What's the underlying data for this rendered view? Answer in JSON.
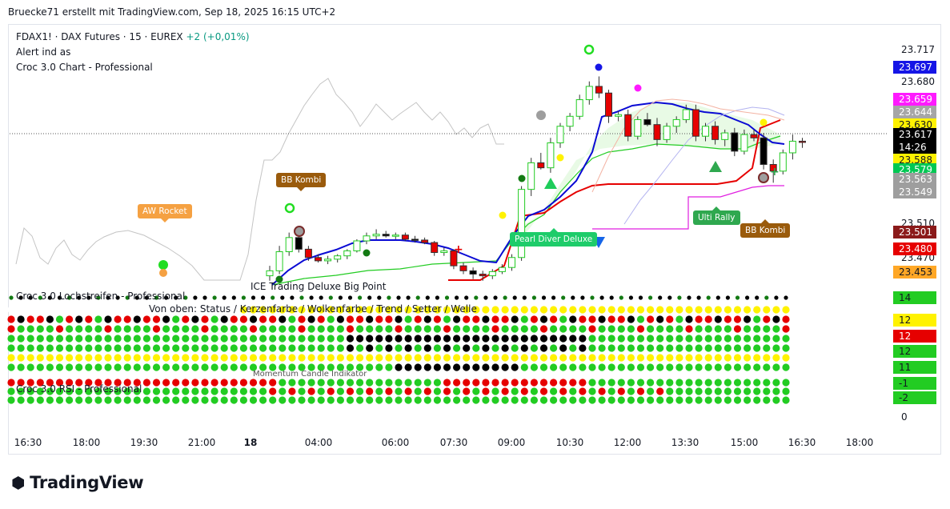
{
  "header": "Bruecke71 erstellt mit TradingView.com, Sep 18, 2025 16:15 UTC+2",
  "legend": {
    "symbol": "FDAX1! · DAX Futures · 15 · EUREX",
    "change": "+2 (+0,01%)",
    "line2": "Alert ind as",
    "line3": "Croc 3.0 Chart - Professional"
  },
  "panes": {
    "lochstreifen_title": "Croc 3.0 Lochstreifen - Professional",
    "lochstreifen_sub": "Von oben: Status / Kerzenfarbe / Wolkenfarbe / Trend / Setter / Welle",
    "ice_label": "ICE Trading Deluxe Big Point",
    "rsi_title": "Croc 3.0 RSI - Professional",
    "momentum_label": "Momentum Candle Indikator"
  },
  "signals": {
    "aw_rocket": "AW Rocket",
    "bb_kombi_1": "BB Kombi",
    "pearl_diver": "Pearl Diver Deluxe",
    "ulti_rally": "Ulti Rally",
    "bb_kombi_2": "BB Kombi"
  },
  "price_axis": {
    "labels": [
      "23.717",
      "23.680",
      "23.510",
      "23.470",
      "0"
    ],
    "badges": [
      {
        "text": "23.697",
        "color": "#1515e6",
        "fg": "#ffffff"
      },
      {
        "text": "23.659",
        "color": "#ff1aff",
        "fg": "#ffffff"
      },
      {
        "text": "23.644",
        "color": "#a6a6a6",
        "fg": "#ffffff"
      },
      {
        "text": "23.630",
        "color": "#fff200",
        "fg": "#131722"
      },
      {
        "text": "23.617",
        "color": "#000000",
        "fg": "#ffffff"
      },
      {
        "text": "14:26",
        "color": "#000000",
        "fg": "#ffffff"
      },
      {
        "text": "23.588",
        "color": "#fff200",
        "fg": "#131722"
      },
      {
        "text": "23.579",
        "color": "#00c853",
        "fg": "#ffffff"
      },
      {
        "text": "23.563",
        "color": "#9e9e9e",
        "fg": "#ffffff"
      },
      {
        "text": "23.549",
        "color": "#9e9e9e",
        "fg": "#ffffff"
      },
      {
        "text": "23.501",
        "color": "#8b1a1a",
        "fg": "#ffffff"
      },
      {
        "text": "23.480",
        "color": "#e60000",
        "fg": "#ffffff"
      },
      {
        "text": "23.453",
        "color": "#ffa726",
        "fg": "#131722"
      },
      {
        "text": "14",
        "color": "#22cc22",
        "fg": "#131722"
      },
      {
        "text": "12",
        "color": "#fff200",
        "fg": "#131722"
      },
      {
        "text": "12",
        "color": "#e60000",
        "fg": "#ffffff"
      },
      {
        "text": "12",
        "color": "#22cc22",
        "fg": "#131722"
      },
      {
        "text": "11",
        "color": "#22cc22",
        "fg": "#131722"
      },
      {
        "text": "-1",
        "color": "#22cc22",
        "fg": "#131722"
      },
      {
        "text": "-2",
        "color": "#22cc22",
        "fg": "#131722"
      }
    ]
  },
  "time_axis": [
    "16:30",
    "18:00",
    "19:30",
    "21:00",
    "18",
    "04:00",
    "06:00",
    "07:30",
    "09:00",
    "10:30",
    "12:00",
    "13:30",
    "15:00",
    "16:30",
    "18:00"
  ],
  "colors": {
    "up": "#22cc22",
    "down": "#e60000",
    "ma_blue": "#0a0ad4",
    "ma_red": "#e60000",
    "ma_green": "#22cc22",
    "ma_magenta": "#e01ee0",
    "grid": "#f0f3fa"
  },
  "chart_data": {
    "type": "candlestick",
    "symbol": "FDAX1!",
    "interval": "15",
    "y_range": [
      23445,
      23735
    ],
    "last_price": 23617,
    "candles": [
      {
        "t": "02:30",
        "o": 23456,
        "h": 23468,
        "l": 23450,
        "c": 23462
      },
      {
        "t": "02:45",
        "o": 23462,
        "h": 23492,
        "l": 23458,
        "c": 23485
      },
      {
        "t": "03:00",
        "o": 23485,
        "h": 23508,
        "l": 23480,
        "c": 23502
      },
      {
        "t": "03:15",
        "o": 23502,
        "h": 23506,
        "l": 23484,
        "c": 23488
      },
      {
        "t": "03:30",
        "o": 23488,
        "h": 23492,
        "l": 23474,
        "c": 23478
      },
      {
        "t": "03:45",
        "o": 23478,
        "h": 23482,
        "l": 23472,
        "c": 23474
      },
      {
        "t": "04:00",
        "o": 23474,
        "h": 23480,
        "l": 23470,
        "c": 23476
      },
      {
        "t": "04:15",
        "o": 23476,
        "h": 23482,
        "l": 23472,
        "c": 23480
      },
      {
        "t": "04:30",
        "o": 23480,
        "h": 23488,
        "l": 23476,
        "c": 23486
      },
      {
        "t": "04:45",
        "o": 23486,
        "h": 23500,
        "l": 23484,
        "c": 23498
      },
      {
        "t": "05:00",
        "o": 23498,
        "h": 23508,
        "l": 23494,
        "c": 23504
      },
      {
        "t": "05:15",
        "o": 23504,
        "h": 23512,
        "l": 23500,
        "c": 23506
      },
      {
        "t": "05:30",
        "o": 23506,
        "h": 23510,
        "l": 23502,
        "c": 23504
      },
      {
        "t": "05:45",
        "o": 23504,
        "h": 23508,
        "l": 23500,
        "c": 23505
      },
      {
        "t": "06:00",
        "o": 23505,
        "h": 23508,
        "l": 23498,
        "c": 23500
      },
      {
        "t": "06:15",
        "o": 23500,
        "h": 23504,
        "l": 23496,
        "c": 23499
      },
      {
        "t": "06:30",
        "o": 23499,
        "h": 23502,
        "l": 23494,
        "c": 23496
      },
      {
        "t": "06:45",
        "o": 23496,
        "h": 23498,
        "l": 23480,
        "c": 23484
      },
      {
        "t": "07:00",
        "o": 23484,
        "h": 23490,
        "l": 23480,
        "c": 23486
      },
      {
        "t": "07:15",
        "o": 23486,
        "h": 23488,
        "l": 23464,
        "c": 23468
      },
      {
        "t": "07:30",
        "o": 23468,
        "h": 23472,
        "l": 23458,
        "c": 23462
      },
      {
        "t": "07:45",
        "o": 23462,
        "h": 23466,
        "l": 23452,
        "c": 23458
      },
      {
        "t": "08:00",
        "o": 23458,
        "h": 23462,
        "l": 23450,
        "c": 23456
      },
      {
        "t": "08:15",
        "o": 23456,
        "h": 23464,
        "l": 23452,
        "c": 23461
      },
      {
        "t": "08:30",
        "o": 23461,
        "h": 23470,
        "l": 23458,
        "c": 23466
      },
      {
        "t": "08:45",
        "o": 23466,
        "h": 23482,
        "l": 23462,
        "c": 23478
      },
      {
        "t": "09:00",
        "o": 23478,
        "h": 23564,
        "l": 23474,
        "c": 23560
      },
      {
        "t": "09:15",
        "o": 23560,
        "h": 23598,
        "l": 23552,
        "c": 23592
      },
      {
        "t": "09:30",
        "o": 23592,
        "h": 23604,
        "l": 23584,
        "c": 23586
      },
      {
        "t": "09:45",
        "o": 23586,
        "h": 23622,
        "l": 23580,
        "c": 23616
      },
      {
        "t": "10:00",
        "o": 23616,
        "h": 23640,
        "l": 23610,
        "c": 23636
      },
      {
        "t": "10:15",
        "o": 23636,
        "h": 23652,
        "l": 23630,
        "c": 23648
      },
      {
        "t": "10:30",
        "o": 23648,
        "h": 23674,
        "l": 23644,
        "c": 23668
      },
      {
        "t": "10:45",
        "o": 23668,
        "h": 23690,
        "l": 23662,
        "c": 23684
      },
      {
        "t": "11:00",
        "o": 23684,
        "h": 23696,
        "l": 23670,
        "c": 23676
      },
      {
        "t": "11:15",
        "o": 23676,
        "h": 23680,
        "l": 23640,
        "c": 23648
      },
      {
        "t": "11:30",
        "o": 23648,
        "h": 23654,
        "l": 23642,
        "c": 23650
      },
      {
        "t": "11:45",
        "o": 23650,
        "h": 23656,
        "l": 23618,
        "c": 23624
      },
      {
        "t": "12:00",
        "o": 23624,
        "h": 23648,
        "l": 23620,
        "c": 23644
      },
      {
        "t": "12:15",
        "o": 23644,
        "h": 23652,
        "l": 23636,
        "c": 23638
      },
      {
        "t": "12:30",
        "o": 23638,
        "h": 23646,
        "l": 23612,
        "c": 23620
      },
      {
        "t": "12:45",
        "o": 23620,
        "h": 23640,
        "l": 23616,
        "c": 23636
      },
      {
        "t": "13:00",
        "o": 23636,
        "h": 23648,
        "l": 23628,
        "c": 23644
      },
      {
        "t": "13:15",
        "o": 23644,
        "h": 23662,
        "l": 23640,
        "c": 23656
      },
      {
        "t": "13:30",
        "o": 23656,
        "h": 23662,
        "l": 23618,
        "c": 23624
      },
      {
        "t": "13:45",
        "o": 23624,
        "h": 23640,
        "l": 23618,
        "c": 23636
      },
      {
        "t": "14:00",
        "o": 23636,
        "h": 23642,
        "l": 23614,
        "c": 23620
      },
      {
        "t": "14:15",
        "o": 23620,
        "h": 23632,
        "l": 23612,
        "c": 23628
      },
      {
        "t": "14:30",
        "o": 23628,
        "h": 23634,
        "l": 23600,
        "c": 23606
      },
      {
        "t": "14:45",
        "o": 23606,
        "h": 23632,
        "l": 23602,
        "c": 23626
      },
      {
        "t": "15:00",
        "o": 23626,
        "h": 23632,
        "l": 23618,
        "c": 23622
      },
      {
        "t": "15:15",
        "o": 23622,
        "h": 23628,
        "l": 23584,
        "c": 23590
      },
      {
        "t": "15:30",
        "o": 23590,
        "h": 23596,
        "l": 23568,
        "c": 23582
      },
      {
        "t": "15:45",
        "o": 23582,
        "h": 23608,
        "l": 23578,
        "c": 23604
      },
      {
        "t": "16:00",
        "o": 23604,
        "h": 23626,
        "l": 23596,
        "c": 23618
      },
      {
        "t": "16:15",
        "o": 23618,
        "h": 23622,
        "l": 23610,
        "c": 23617
      }
    ]
  }
}
